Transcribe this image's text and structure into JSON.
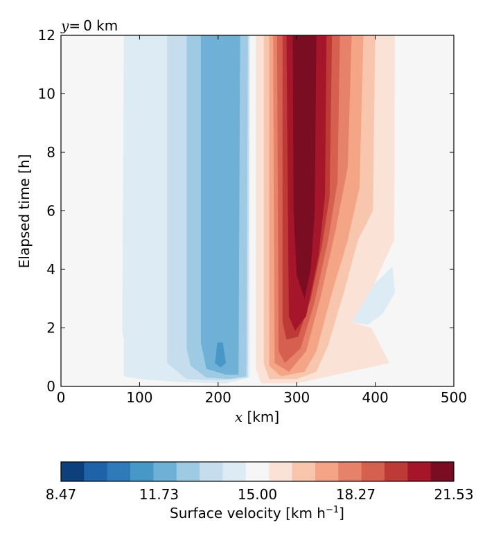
{
  "chart_data": {
    "type": "heatmap",
    "subtitle_var": "y",
    "subtitle_eq": "=",
    "subtitle_value": "0 km",
    "xlabel_var": "x",
    "xlabel_unit": " [km]",
    "ylabel": "Elapsed time [h]",
    "xlim": [
      0,
      500
    ],
    "ylim": [
      0,
      12
    ],
    "x_ticks": [
      "0",
      "100",
      "200",
      "300",
      "400",
      "500"
    ],
    "y_ticks": [
      "0",
      "2",
      "4",
      "6",
      "8",
      "10",
      "12"
    ],
    "colorbar": {
      "label_main": "Surface velocity [km h",
      "label_sup": "−1",
      "label_end": "]",
      "vmin": 8.47,
      "vmax": 21.53,
      "tick_labels": [
        "8.47",
        "11.73",
        "15.00",
        "18.27",
        "21.53"
      ],
      "tick_values": [
        8.47,
        11.73,
        15.0,
        18.27,
        21.53
      ],
      "levels": 17,
      "colors": [
        "#0d3f7a",
        "#1f62a8",
        "#2f7ab9",
        "#4797c7",
        "#6fb0d6",
        "#9ecbe3",
        "#c6ddee",
        "#ddebf4",
        "#f6f6f6",
        "#fbe2d6",
        "#f8c6ad",
        "#f4a586",
        "#e6826a",
        "#d56050",
        "#be3a37",
        "#a5162a",
        "#7b0d23"
      ]
    },
    "field_regions": [
      {
        "level": 8,
        "desc": "background ≈ 15",
        "polygon": [
          [
            0,
            0
          ],
          [
            500,
            0
          ],
          [
            500,
            12
          ],
          [
            0,
            12
          ]
        ]
      },
      {
        "level": 7,
        "polygon": [
          [
            80,
            12
          ],
          [
            240,
            12
          ],
          [
            240,
            0.3
          ],
          [
            210,
            0.1
          ],
          [
            150,
            0.15
          ],
          [
            100,
            0.25
          ],
          [
            80,
            0.35
          ],
          [
            80,
            1.6
          ],
          [
            78,
            1.9
          ],
          [
            80,
            12
          ]
        ]
      },
      {
        "level": 6,
        "polygon": [
          [
            135,
            12
          ],
          [
            240,
            12
          ],
          [
            238,
            0.3
          ],
          [
            200,
            0.2
          ],
          [
            160,
            0.25
          ],
          [
            135,
            0.8
          ],
          [
            135,
            12
          ]
        ]
      },
      {
        "level": 5,
        "polygon": [
          [
            160,
            12
          ],
          [
            238,
            12
          ],
          [
            236,
            0.35
          ],
          [
            215,
            0.25
          ],
          [
            185,
            0.3
          ],
          [
            165,
            0.7
          ],
          [
            160,
            1.3
          ],
          [
            160,
            12
          ]
        ]
      },
      {
        "level": 4,
        "polygon": [
          [
            178,
            12
          ],
          [
            228,
            12
          ],
          [
            226,
            0.4
          ],
          [
            210,
            0.4
          ],
          [
            185,
            0.6
          ],
          [
            178,
            1.5
          ],
          [
            178,
            12
          ]
        ]
      },
      {
        "level": 3,
        "polygon": [
          [
            199,
            1.5
          ],
          [
            206,
            1.5
          ],
          [
            210,
            0.8
          ],
          [
            203,
            0.65
          ],
          [
            196,
            0.8
          ],
          [
            199,
            1.5
          ]
        ]
      },
      {
        "level": 7,
        "polygon": [
          [
            370,
            2.2
          ],
          [
            395,
            3.4
          ],
          [
            422,
            4.1
          ],
          [
            425,
            3.2
          ],
          [
            410,
            2.5
          ],
          [
            390,
            2.1
          ],
          [
            370,
            2.2
          ]
        ]
      },
      {
        "level": 9,
        "polygon": [
          [
            248,
            12
          ],
          [
            425,
            12
          ],
          [
            424,
            5.0
          ],
          [
            395,
            3.3
          ],
          [
            370,
            2.2
          ],
          [
            395,
            2.0
          ],
          [
            418,
            0.8
          ],
          [
            350,
            0.4
          ],
          [
            300,
            0.1
          ],
          [
            255,
            0.1
          ],
          [
            248,
            0.6
          ],
          [
            248,
            12
          ]
        ]
      },
      {
        "level": 10,
        "polygon": [
          [
            258,
            12
          ],
          [
            400,
            12
          ],
          [
            397,
            6.0
          ],
          [
            378,
            5.0
          ],
          [
            360,
            3.2
          ],
          [
            340,
            1.4
          ],
          [
            325,
            0.5
          ],
          [
            300,
            0.25
          ],
          [
            265,
            0.25
          ],
          [
            258,
            0.8
          ],
          [
            258,
            12
          ]
        ]
      },
      {
        "level": 11,
        "polygon": [
          [
            265,
            12
          ],
          [
            385,
            12
          ],
          [
            380,
            6.8
          ],
          [
            365,
            5.0
          ],
          [
            345,
            3.2
          ],
          [
            325,
            1.2
          ],
          [
            310,
            0.5
          ],
          [
            280,
            0.35
          ],
          [
            265,
            0.7
          ],
          [
            265,
            12
          ]
        ]
      },
      {
        "level": 12,
        "polygon": [
          [
            270,
            12
          ],
          [
            370,
            12
          ],
          [
            365,
            7.5
          ],
          [
            350,
            5.4
          ],
          [
            330,
            3.0
          ],
          [
            312,
            1.2
          ],
          [
            290,
            0.5
          ],
          [
            272,
            0.8
          ],
          [
            270,
            12
          ]
        ]
      },
      {
        "level": 13,
        "polygon": [
          [
            275,
            12
          ],
          [
            355,
            12
          ],
          [
            352,
            7.0
          ],
          [
            340,
            5.0
          ],
          [
            322,
            2.8
          ],
          [
            305,
            1.3
          ],
          [
            285,
            0.8
          ],
          [
            277,
            1.2
          ],
          [
            275,
            12
          ]
        ]
      },
      {
        "level": 14,
        "polygon": [
          [
            282,
            12
          ],
          [
            345,
            12
          ],
          [
            342,
            6.5
          ],
          [
            332,
            4.8
          ],
          [
            318,
            3.0
          ],
          [
            302,
            1.7
          ],
          [
            287,
            1.6
          ],
          [
            282,
            2.2
          ],
          [
            282,
            12
          ]
        ]
      },
      {
        "level": 15,
        "polygon": [
          [
            287,
            12
          ],
          [
            338,
            12
          ],
          [
            336,
            6.5
          ],
          [
            328,
            4.5
          ],
          [
            312,
            2.4
          ],
          [
            298,
            1.9
          ],
          [
            290,
            2.4
          ],
          [
            287,
            12
          ]
        ]
      },
      {
        "level": 16,
        "polygon": [
          [
            295,
            12
          ],
          [
            325,
            12
          ],
          [
            323,
            6.0
          ],
          [
            318,
            4.0
          ],
          [
            310,
            3.0
          ],
          [
            300,
            3.8
          ],
          [
            296,
            6.0
          ],
          [
            295,
            12
          ]
        ]
      }
    ]
  }
}
